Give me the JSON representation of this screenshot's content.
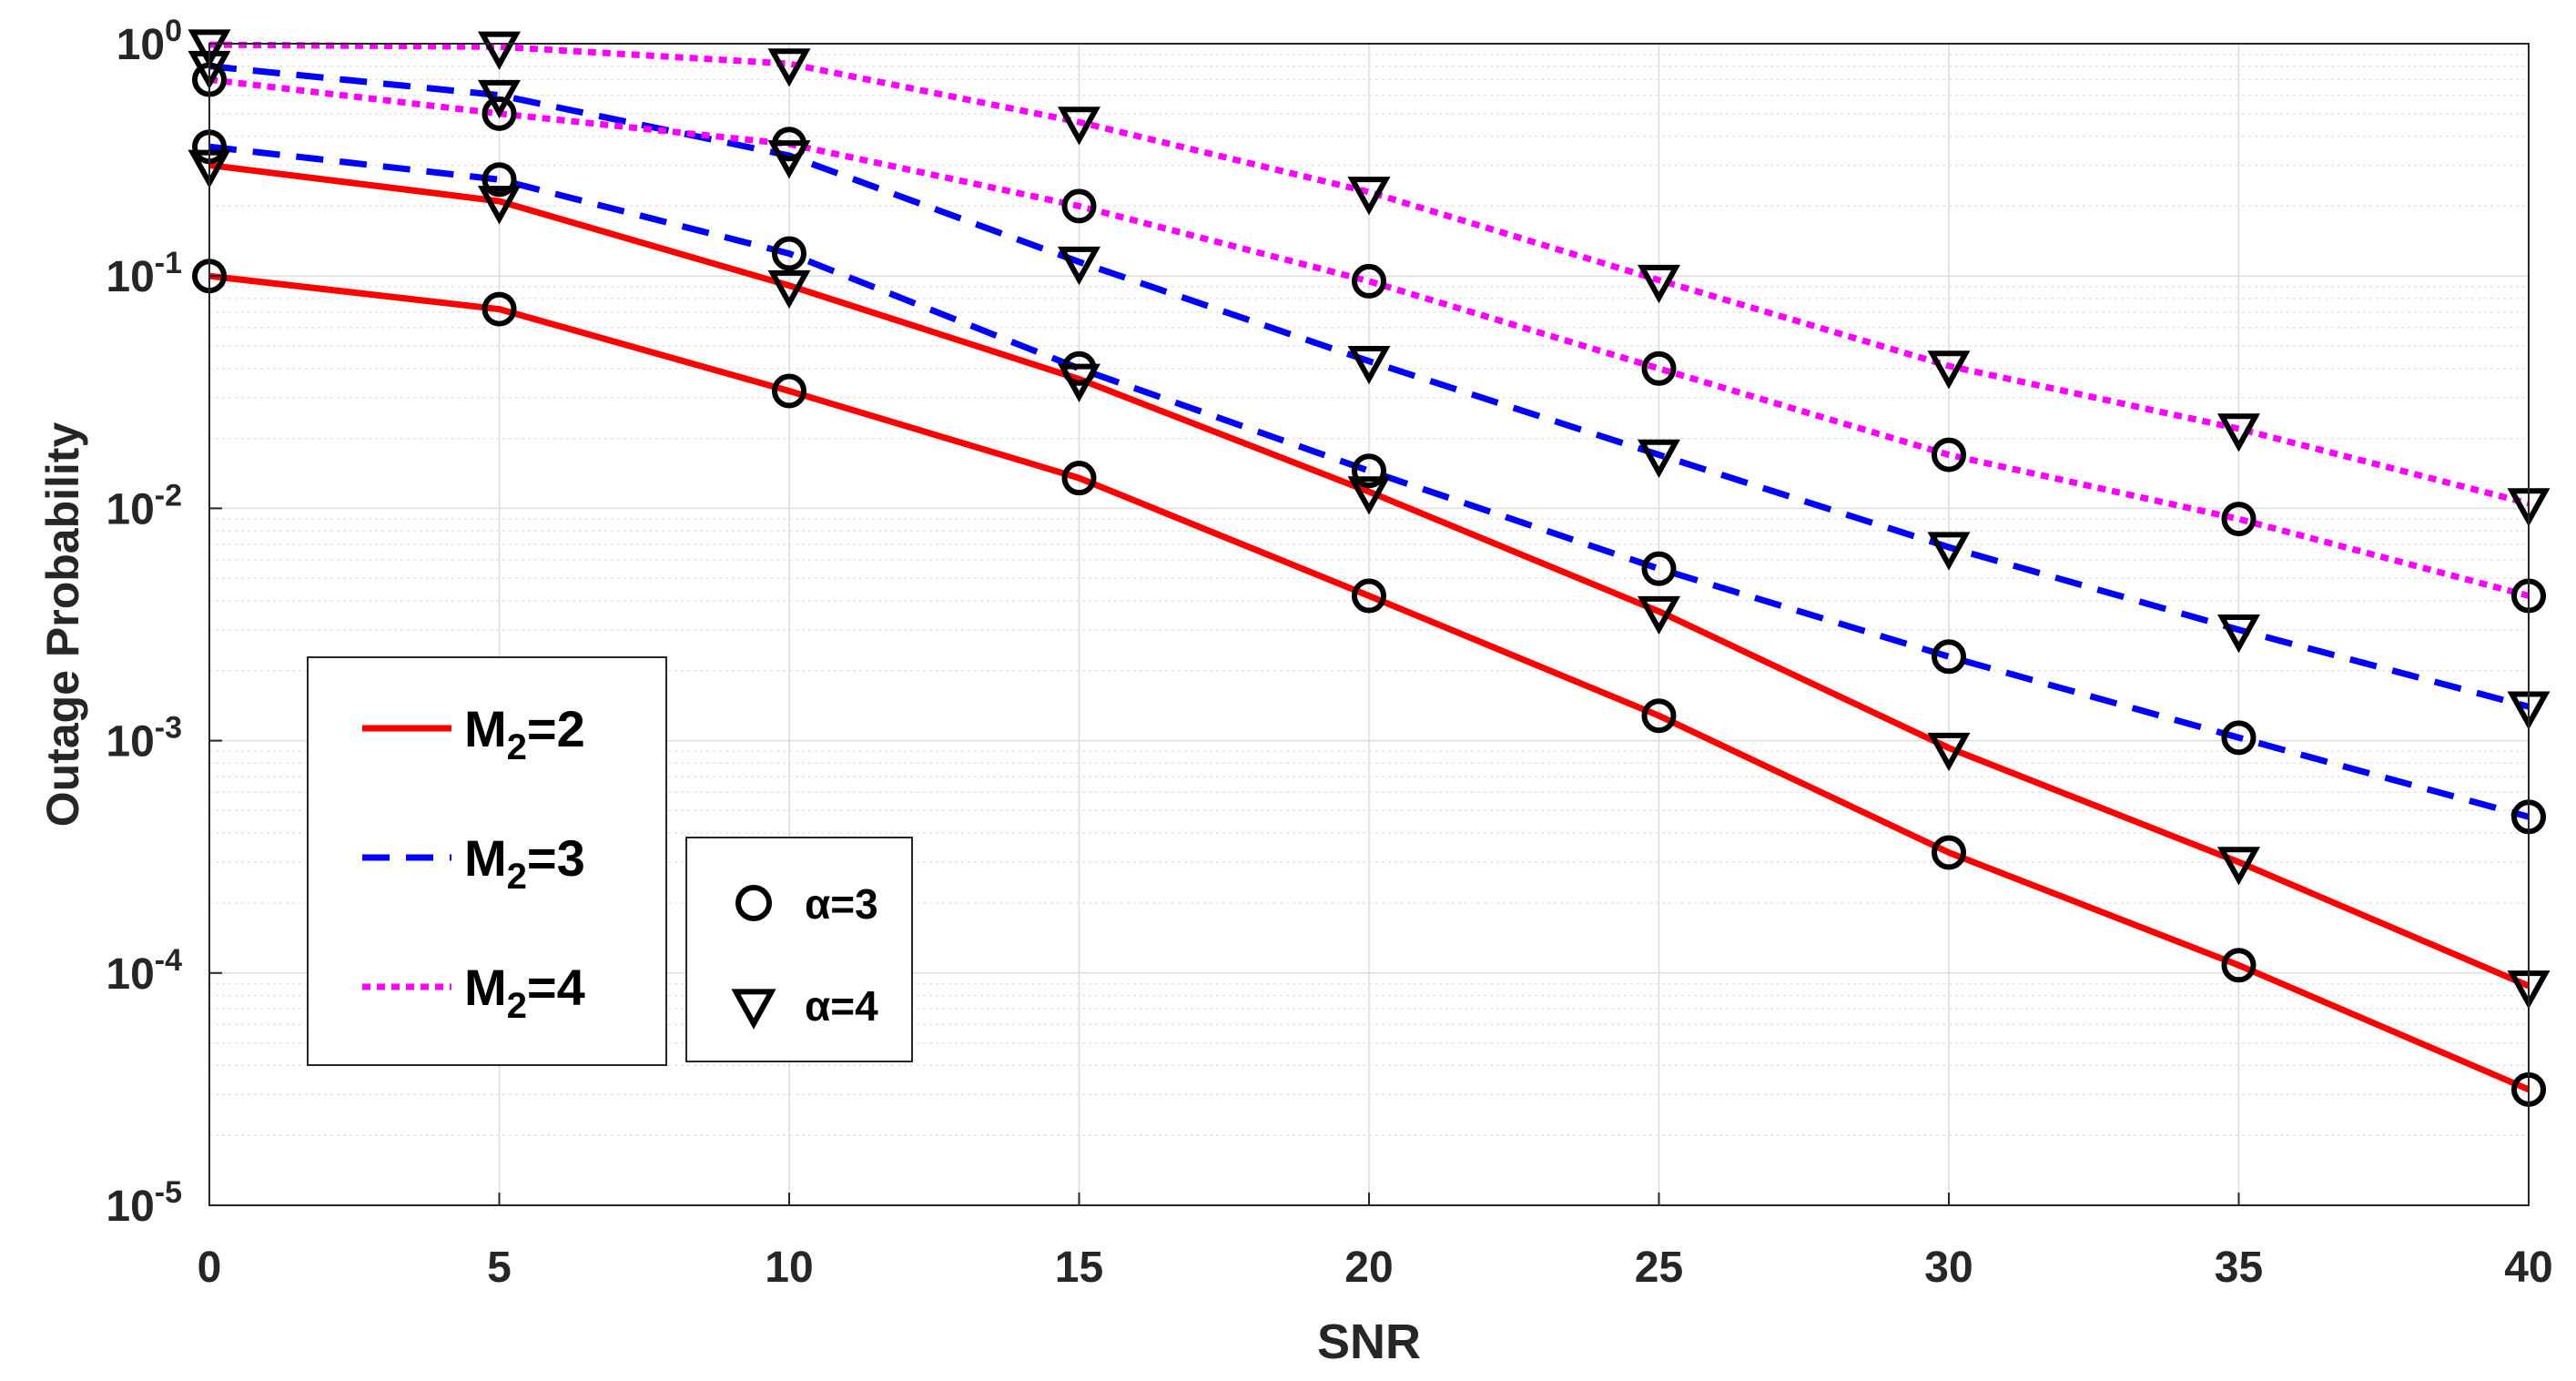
{
  "chart_data": {
    "type": "line",
    "xlabel": "SNR",
    "ylabel": "Outage Probability",
    "yscale": "log",
    "xlim": [
      0,
      40
    ],
    "ylim": [
      1e-05,
      1
    ],
    "x": [
      0,
      5,
      10,
      15,
      20,
      25,
      30,
      35,
      40
    ],
    "x_ticks": [
      "0",
      "5",
      "10",
      "15",
      "20",
      "25",
      "30",
      "35",
      "40"
    ],
    "y_ticks": [
      {
        "value": 1,
        "base": "10",
        "exp": "0"
      },
      {
        "value": 0.1,
        "base": "10",
        "exp": "-1"
      },
      {
        "value": 0.01,
        "base": "10",
        "exp": "-2"
      },
      {
        "value": 0.001,
        "base": "10",
        "exp": "-3"
      },
      {
        "value": 0.0001,
        "base": "10",
        "exp": "-4"
      },
      {
        "value": 1e-05,
        "base": "10",
        "exp": "-5"
      }
    ],
    "grid": true,
    "series": [
      {
        "name": "M2=2, α=3",
        "line": "M2=2",
        "marker": "circle",
        "color": "#ff0000",
        "dash": "solid",
        "values": [
          0.1,
          0.072,
          0.032,
          0.0135,
          0.0042,
          0.00128,
          0.00033,
          0.000108,
          3.15e-05
        ]
      },
      {
        "name": "M2=2, α=4",
        "line": "M2=2",
        "marker": "triangle",
        "color": "#ff0000",
        "dash": "solid",
        "values": [
          0.3,
          0.21,
          0.091,
          0.036,
          0.0118,
          0.0036,
          0.00093,
          0.0003,
          8.8e-05
        ]
      },
      {
        "name": "M2=3, α=3",
        "line": "M2=3",
        "marker": "circle",
        "color": "#0000ff",
        "dash": "dashed",
        "values": [
          0.36,
          0.26,
          0.125,
          0.04,
          0.0145,
          0.0055,
          0.0023,
          0.00103,
          0.00047
        ]
      },
      {
        "name": "M2=3, α=4",
        "line": "M2=3",
        "marker": "triangle",
        "color": "#0000ff",
        "dash": "dashed",
        "values": [
          0.8,
          0.6,
          0.33,
          0.115,
          0.043,
          0.017,
          0.0068,
          0.003,
          0.0014
        ]
      },
      {
        "name": "M2=4, α=3",
        "line": "M2=4",
        "marker": "circle",
        "color": "#ff00ff",
        "dash": "dotted",
        "values": [
          0.7,
          0.5,
          0.37,
          0.2,
          0.095,
          0.04,
          0.017,
          0.009,
          0.0042
        ]
      },
      {
        "name": "M2=4, α=4",
        "line": "M2=4",
        "marker": "triangle",
        "color": "#ff00ff",
        "dash": "dotted",
        "values": [
          0.99,
          0.97,
          0.82,
          0.46,
          0.23,
          0.096,
          0.041,
          0.022,
          0.0105
        ]
      }
    ],
    "legend_lines": [
      {
        "label_main": "M",
        "label_sub": "2",
        "label_rest": "=2",
        "color": "#ff0000",
        "dash": "solid"
      },
      {
        "label_main": "M",
        "label_sub": "2",
        "label_rest": "=3",
        "color": "#0000ff",
        "dash": "dashed"
      },
      {
        "label_main": "M",
        "label_sub": "2",
        "label_rest": "=4",
        "color": "#ff00ff",
        "dash": "dotted"
      }
    ],
    "legend_markers": [
      {
        "marker": "circle",
        "label": "α=3"
      },
      {
        "marker": "triangle",
        "label": "α=4"
      }
    ],
    "legend_lines_position": "lower-left",
    "legend_markers_position": "lower-left"
  }
}
